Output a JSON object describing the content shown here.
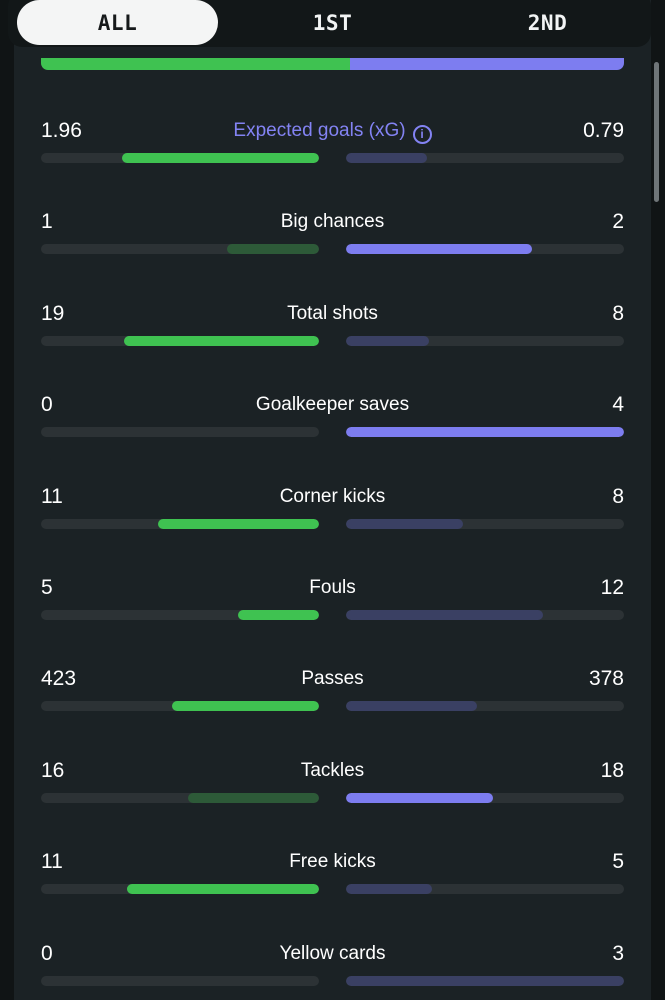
{
  "tabs": [
    {
      "label": "ALL",
      "active": true
    },
    {
      "label": "1ST",
      "active": false
    },
    {
      "label": "2ND",
      "active": false
    }
  ],
  "colors": {
    "home_win": "#3fc251",
    "home_lose": "#2d5a38",
    "away_win": "#7d7df0",
    "away_lose": "#3a4063",
    "accent": "#8383f3"
  },
  "possession": {
    "home_fraction": 0.53
  },
  "stats": [
    {
      "label": "Expected goals (xG)",
      "home": "1.96",
      "away": "0.79",
      "home_fill": 0.71,
      "away_fill": 0.29,
      "winner": "home",
      "accent": true,
      "info": true
    },
    {
      "label": "Big chances",
      "home": "1",
      "away": "2",
      "home_fill": 0.33,
      "away_fill": 0.67,
      "winner": "away"
    },
    {
      "label": "Total shots",
      "home": "19",
      "away": "8",
      "home_fill": 0.7,
      "away_fill": 0.3,
      "winner": "home"
    },
    {
      "label": "Goalkeeper saves",
      "home": "0",
      "away": "4",
      "home_fill": 0.0,
      "away_fill": 1.0,
      "winner": "away"
    },
    {
      "label": "Corner kicks",
      "home": "11",
      "away": "8",
      "home_fill": 0.58,
      "away_fill": 0.42,
      "winner": "home"
    },
    {
      "label": "Fouls",
      "home": "5",
      "away": "12",
      "home_fill": 0.29,
      "away_fill": 0.71,
      "winner": "home"
    },
    {
      "label": "Passes",
      "home": "423",
      "away": "378",
      "home_fill": 0.53,
      "away_fill": 0.47,
      "winner": "home"
    },
    {
      "label": "Tackles",
      "home": "16",
      "away": "18",
      "home_fill": 0.47,
      "away_fill": 0.53,
      "winner": "away"
    },
    {
      "label": "Free kicks",
      "home": "11",
      "away": "5",
      "home_fill": 0.69,
      "away_fill": 0.31,
      "winner": "home"
    },
    {
      "label": "Yellow cards",
      "home": "0",
      "away": "3",
      "home_fill": 0.0,
      "away_fill": 1.0,
      "winner": "home"
    }
  ]
}
